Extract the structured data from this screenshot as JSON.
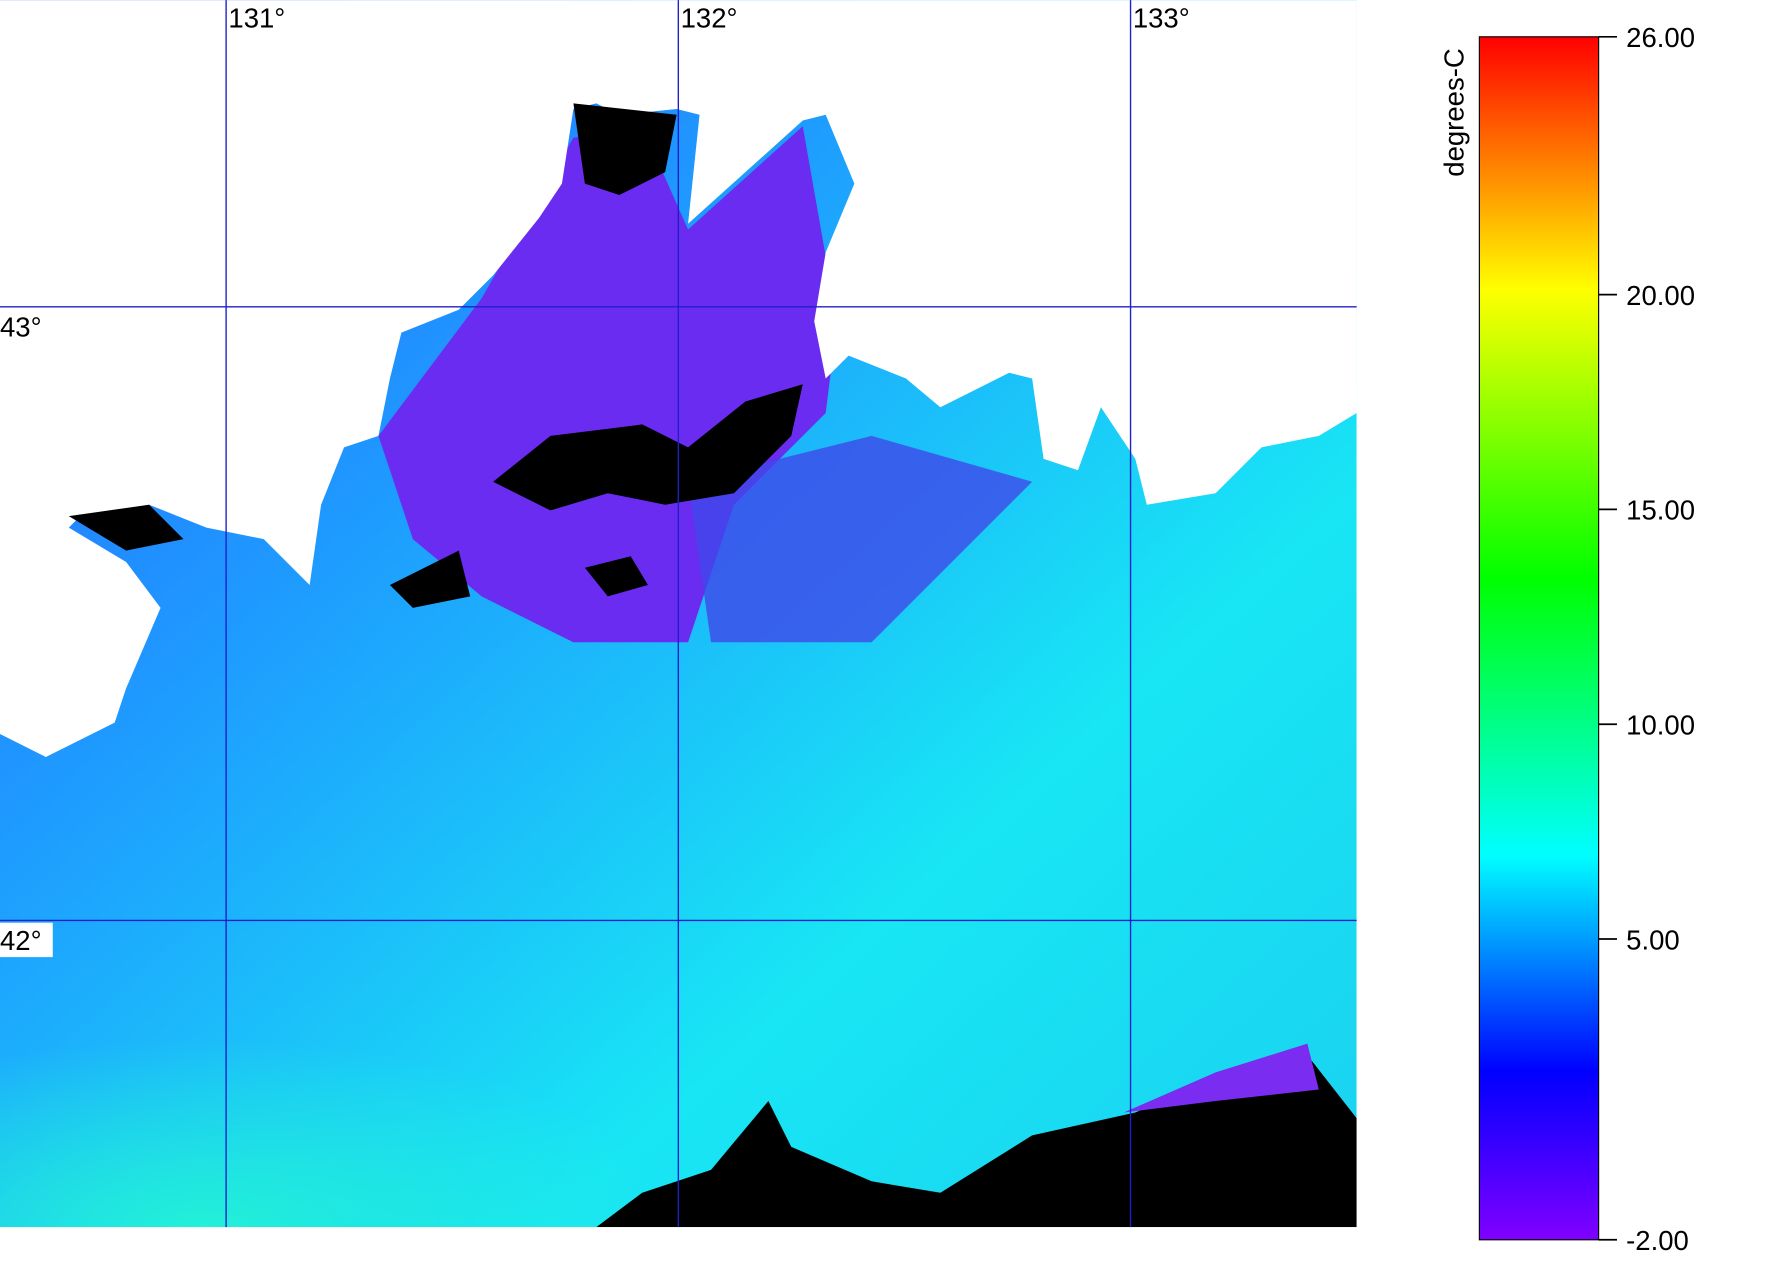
{
  "map": {
    "lonlim": [
      130.5,
      133.5
    ],
    "latlim": [
      41.5,
      43.5
    ],
    "lon_ticks": [
      {
        "value": 131,
        "label": "131°"
      },
      {
        "value": 132,
        "label": "132°"
      },
      {
        "value": 133,
        "label": "133°"
      }
    ],
    "lat_ticks": [
      {
        "value": 43,
        "label": "43°"
      },
      {
        "value": 42,
        "label": "42°"
      }
    ]
  },
  "colorbar": {
    "title": "degrees-C",
    "range": [
      -2,
      26
    ],
    "ticks": [
      {
        "value": 26,
        "label": "26.00"
      },
      {
        "value": 20,
        "label": "20.00"
      },
      {
        "value": 15,
        "label": "15.00"
      },
      {
        "value": 10,
        "label": "10.00"
      },
      {
        "value": 5,
        "label": "5.00"
      },
      {
        "value": -2,
        "label": "-2.00"
      }
    ]
  }
}
